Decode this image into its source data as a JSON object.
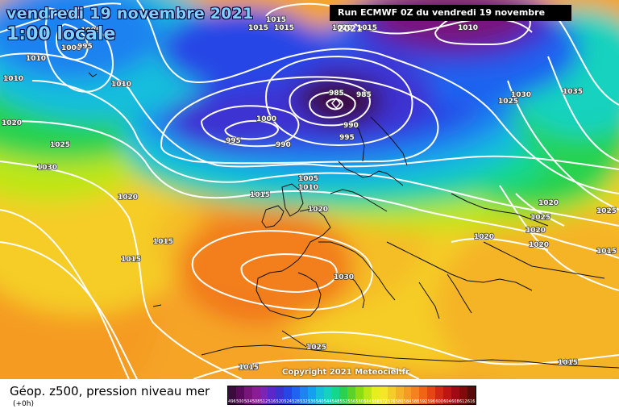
{
  "header": {
    "date_title": "vendredi 19 novembre 2021",
    "time_title": "1:00 locale",
    "run_info": "Run ECMWF 0Z du vendredi 19 novembre 2021"
  },
  "copyright": "Copyright 2021 Meteociel.fr",
  "isobar_labels": [
    "1005",
    "1015",
    "1015",
    "1015",
    "1020",
    "1015",
    "1010",
    "1010",
    "1000",
    "995",
    "1010",
    "1020",
    "1025",
    "1030",
    "1020",
    "1010",
    "985",
    "985",
    "1000",
    "995",
    "990",
    "990",
    "995",
    "1005",
    "1010",
    "1015",
    "1020",
    "1025",
    "1030",
    "1035",
    "1020",
    "1025",
    "1020",
    "1020",
    "1025",
    "1020",
    "1015",
    "1015",
    "1015",
    "1030",
    "1025",
    "1015",
    "1015",
    "1015"
  ],
  "footer": {
    "title": "Géop. z500, pression niveau mer",
    "subtitle": "(+0h)"
  },
  "scale": {
    "labels": [
      "496",
      "500",
      "504",
      "508",
      "512",
      "516",
      "520",
      "524",
      "528",
      "532",
      "536",
      "540",
      "544",
      "548",
      "552",
      "556",
      "560",
      "564",
      "568",
      "572",
      "576",
      "580",
      "584",
      "588",
      "592",
      "596",
      "600",
      "604",
      "608",
      "612",
      "616"
    ],
    "colors": [
      "#3c0a3c",
      "#5a0a5a",
      "#78147a",
      "#8c1c96",
      "#7d24b4",
      "#5a28c8",
      "#3c32d2",
      "#2846e6",
      "#1e64f0",
      "#1e82f0",
      "#14a0f0",
      "#14bedc",
      "#14d2be",
      "#14d78c",
      "#28d250",
      "#5ad228",
      "#8cdc14",
      "#bee614",
      "#e6ee1e",
      "#f5e628",
      "#f5cd28",
      "#f5b428",
      "#f59b23",
      "#f5821e",
      "#f06414",
      "#e64614",
      "#d22814",
      "#be1414",
      "#a00a14",
      "#820a0a",
      "#5a0a0a"
    ]
  }
}
